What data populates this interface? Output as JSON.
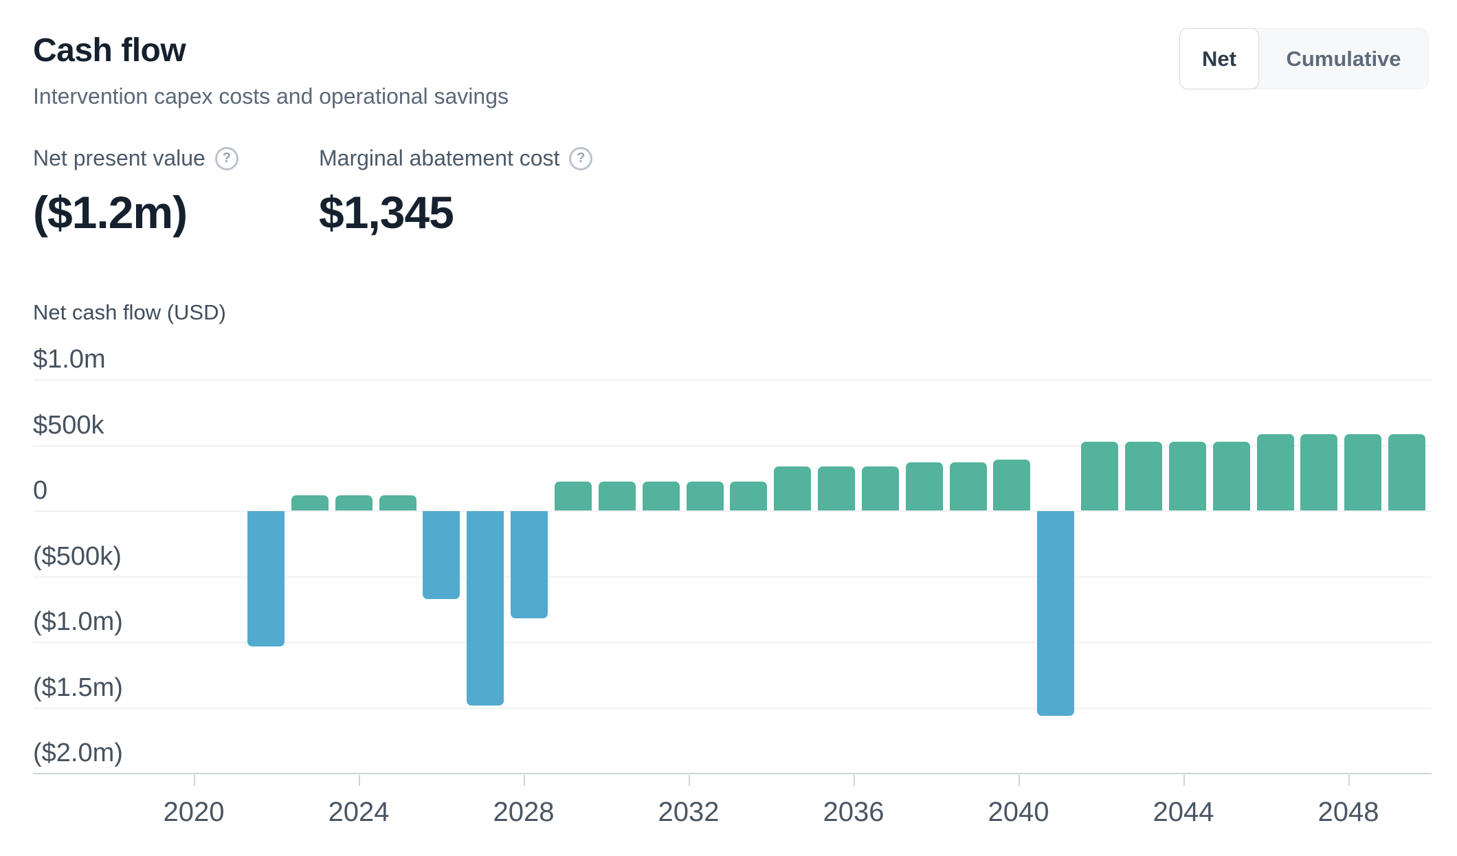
{
  "header": {
    "title": "Cash flow",
    "subtitle": "Intervention capex costs and operational savings"
  },
  "toggle": {
    "options": [
      "Net",
      "Cumulative"
    ],
    "selected": "Net"
  },
  "icons": {
    "help_glyph": "?"
  },
  "metrics": [
    {
      "label": "Net present value",
      "value": "($1.2m)"
    },
    {
      "label": "Marginal abatement cost",
      "value": "$1,345"
    }
  ],
  "chart_data": {
    "type": "bar",
    "ylabel": "Net cash flow (USD)",
    "xlabel": "",
    "categories": [
      2022,
      2023,
      2024,
      2025,
      2026,
      2027,
      2028,
      2029,
      2030,
      2031,
      2032,
      2033,
      2034,
      2035,
      2036,
      2037,
      2038,
      2039,
      2040,
      2041,
      2042,
      2043,
      2044,
      2045,
      2046,
      2047,
      2048
    ],
    "values": [
      -1030000,
      117000,
      117000,
      117000,
      -670000,
      -1480000,
      -815000,
      220000,
      220000,
      220000,
      220000,
      220000,
      335000,
      335000,
      335000,
      368000,
      368000,
      385000,
      -1560000,
      525000,
      525000,
      525000,
      525000,
      583000,
      583000,
      583000,
      583000
    ],
    "y_ticks": [
      {
        "label": "$1.0m",
        "value": 1000000
      },
      {
        "label": "$500k",
        "value": 500000
      },
      {
        "label": "0",
        "value": 0
      },
      {
        "label": "($500k)",
        "value": -500000
      },
      {
        "label": "($1.0m)",
        "value": -1000000
      },
      {
        "label": "($1.5m)",
        "value": -1500000
      },
      {
        "label": "($2.0m)",
        "value": -2000000
      }
    ],
    "x_ticks": [
      2020,
      2024,
      2028,
      2032,
      2036,
      2040,
      2044,
      2048
    ],
    "ylim": [
      -2000000,
      1000000
    ],
    "grid": "horizontal",
    "legend": "none",
    "colors": {
      "positive": "#53b39d",
      "negative": "#53aacf"
    }
  }
}
